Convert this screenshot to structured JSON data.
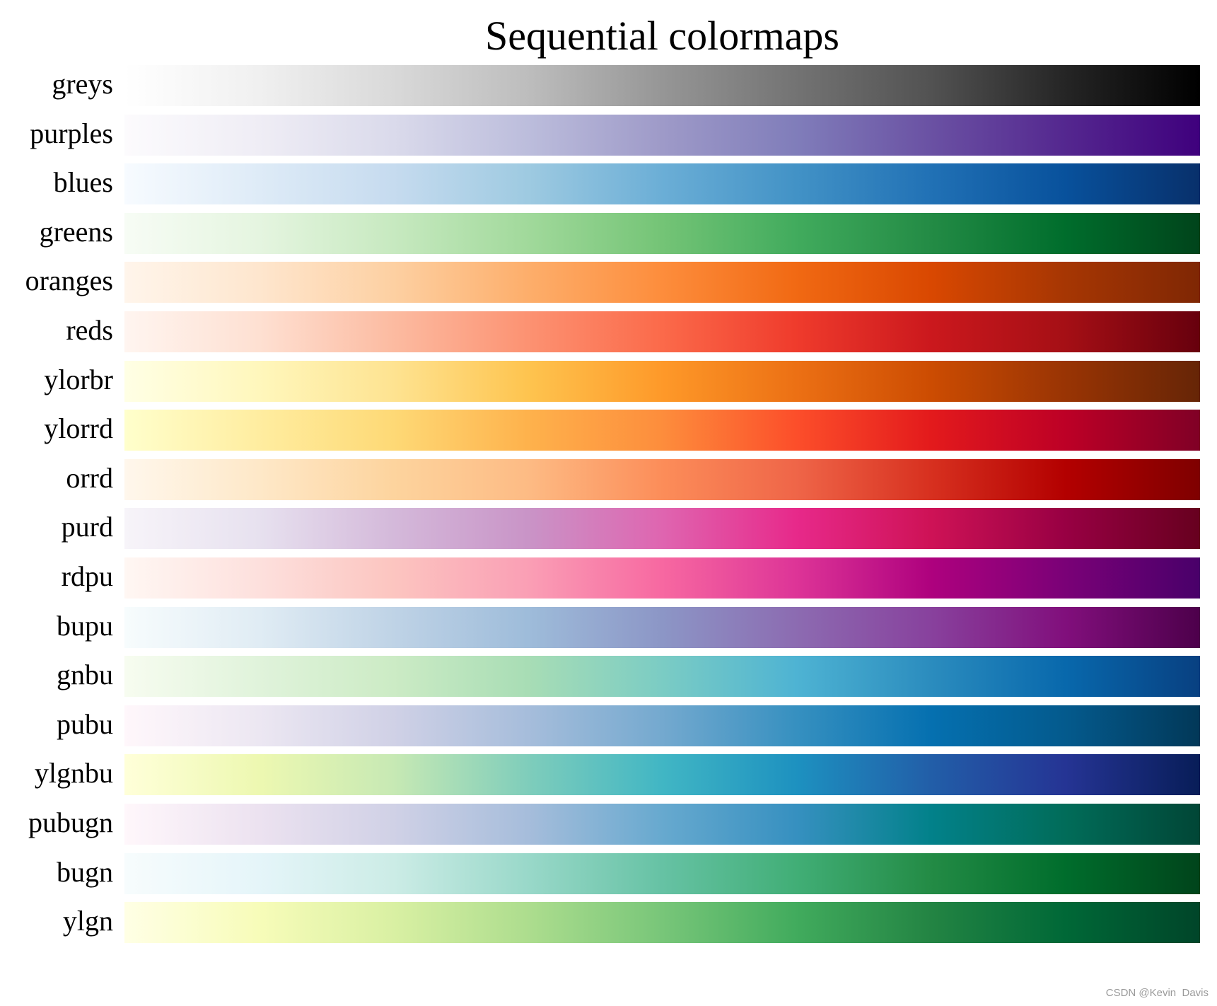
{
  "watermark": "CSDN @Kevin  Davis",
  "chart_data": {
    "type": "heatmap",
    "title": "Sequential colormaps",
    "xlabel": "",
    "ylabel": "",
    "grid": false,
    "x_range": [
      0,
      1
    ],
    "colormaps": [
      {
        "name": "greys",
        "colors": [
          "#ffffff",
          "#f0f0f0",
          "#d9d9d9",
          "#bdbdbd",
          "#969696",
          "#737373",
          "#525252",
          "#252525",
          "#000000"
        ]
      },
      {
        "name": "purples",
        "colors": [
          "#fcfbfd",
          "#efedf5",
          "#dadaeb",
          "#bcbddc",
          "#9e9ac8",
          "#807dba",
          "#6a51a3",
          "#54278f",
          "#3f007d"
        ]
      },
      {
        "name": "blues",
        "colors": [
          "#f7fbff",
          "#deebf7",
          "#c6dbef",
          "#9ecae1",
          "#6baed6",
          "#4292c6",
          "#2171b5",
          "#08519c",
          "#08306b"
        ]
      },
      {
        "name": "greens",
        "colors": [
          "#f7fcf5",
          "#e5f5e0",
          "#c7e9c0",
          "#a1d99b",
          "#74c476",
          "#41ab5d",
          "#238b45",
          "#006d2c",
          "#00441b"
        ]
      },
      {
        "name": "oranges",
        "colors": [
          "#fff5eb",
          "#fee6ce",
          "#fdd0a2",
          "#fdae6b",
          "#fd8d3c",
          "#f16913",
          "#d94801",
          "#a63603",
          "#7f2704"
        ]
      },
      {
        "name": "reds",
        "colors": [
          "#fff5f0",
          "#fee0d2",
          "#fcbba1",
          "#fc9272",
          "#fb6a4a",
          "#ef3b2c",
          "#cb181d",
          "#a50f15",
          "#67000d"
        ]
      },
      {
        "name": "ylorbr",
        "colors": [
          "#ffffe5",
          "#fff7bc",
          "#fee391",
          "#fec44f",
          "#fe9929",
          "#ec7014",
          "#cc4c02",
          "#993404",
          "#662506"
        ]
      },
      {
        "name": "ylorrd",
        "colors": [
          "#ffffcc",
          "#ffeda0",
          "#fed976",
          "#feb24c",
          "#fd8d3c",
          "#fc4e2a",
          "#e31a1c",
          "#bd0026",
          "#800026"
        ]
      },
      {
        "name": "orrd",
        "colors": [
          "#fff7ec",
          "#fee8c8",
          "#fdd49e",
          "#fdbb84",
          "#fc8d59",
          "#ef6548",
          "#d7301f",
          "#b30000",
          "#7f0000"
        ]
      },
      {
        "name": "purd",
        "colors": [
          "#f7f4f9",
          "#e7e1ef",
          "#d4b9da",
          "#c994c7",
          "#df65b0",
          "#e7298a",
          "#ce1256",
          "#980043",
          "#67001f"
        ]
      },
      {
        "name": "rdpu",
        "colors": [
          "#fff7f3",
          "#fde0dd",
          "#fcc5c0",
          "#fa9fb5",
          "#f768a1",
          "#dd3497",
          "#ae017e",
          "#7a0177",
          "#49006a"
        ]
      },
      {
        "name": "bupu",
        "colors": [
          "#f7fcfd",
          "#e0ecf4",
          "#bfd3e6",
          "#9ebcda",
          "#8c96c6",
          "#8c6bb1",
          "#88419d",
          "#810f7c",
          "#4d004b"
        ]
      },
      {
        "name": "gnbu",
        "colors": [
          "#f7fcf0",
          "#e0f3db",
          "#ccebc5",
          "#a8ddb5",
          "#7bccc4",
          "#4eb3d3",
          "#2b8cbe",
          "#0868ac",
          "#084081"
        ]
      },
      {
        "name": "pubu",
        "colors": [
          "#fff7fb",
          "#ece7f2",
          "#d0d1e6",
          "#a6bddb",
          "#74a9cf",
          "#3690c0",
          "#0570b0",
          "#045a8d",
          "#023858"
        ]
      },
      {
        "name": "ylgnbu",
        "colors": [
          "#ffffd9",
          "#edf8b1",
          "#c7e9b4",
          "#7fcdbb",
          "#41b6c4",
          "#1d91c0",
          "#225ea8",
          "#253494",
          "#081d58"
        ]
      },
      {
        "name": "pubugn",
        "colors": [
          "#fff7fb",
          "#ece2f0",
          "#d0d1e6",
          "#a6bddb",
          "#67a9cf",
          "#3690c0",
          "#02818a",
          "#016c59",
          "#014636"
        ]
      },
      {
        "name": "bugn",
        "colors": [
          "#f7fcfd",
          "#e5f5f9",
          "#ccece6",
          "#99d8c9",
          "#66c2a4",
          "#41ae76",
          "#238b45",
          "#006d2c",
          "#00441b"
        ]
      },
      {
        "name": "ylgn",
        "colors": [
          "#ffffe5",
          "#f7fcb9",
          "#d9f0a3",
          "#addd8e",
          "#78c679",
          "#41ab5d",
          "#238443",
          "#006837",
          "#004529"
        ]
      }
    ]
  }
}
